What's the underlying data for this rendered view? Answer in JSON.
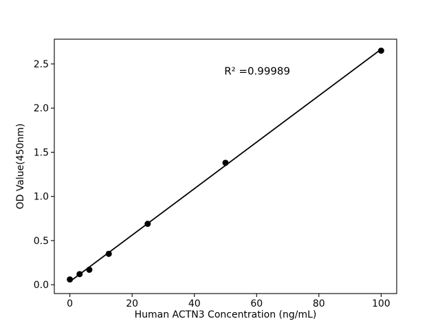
{
  "figure": {
    "background": "#ffffff"
  },
  "chart_data": {
    "type": "scatter",
    "title": "",
    "xlabel": "Human ACTN3 Concentration (ng/mL)",
    "ylabel": "OD Value(450nm)",
    "x": [
      0,
      3.12,
      6.25,
      12.5,
      25,
      50,
      100
    ],
    "y": [
      0.06,
      0.12,
      0.17,
      0.35,
      0.69,
      1.38,
      2.65
    ],
    "fit_line": {
      "slope": 0.0263,
      "intercept": 0.036,
      "x_start": 0,
      "x_end": 100
    },
    "annotation": {
      "text": "R² =0.99989",
      "x": 49.6,
      "y": 2.42
    },
    "xlim": [
      -5,
      105
    ],
    "ylim": [
      -0.1,
      2.78
    ],
    "xtick_values": [
      0,
      20,
      40,
      60,
      80,
      100
    ],
    "xtick_labels": [
      "0",
      "20",
      "40",
      "60",
      "80",
      "100"
    ],
    "ytick_values": [
      0.0,
      0.5,
      1.0,
      1.5,
      2.0,
      2.5
    ],
    "ytick_labels": [
      "0.0",
      "0.5",
      "1.0",
      "1.5",
      "2.0",
      "2.5"
    ],
    "grid": false,
    "legend": null,
    "marker_color": "#000000",
    "line_color": "#000000",
    "axes_color": "#000000",
    "plot_background": "#ffffff"
  }
}
